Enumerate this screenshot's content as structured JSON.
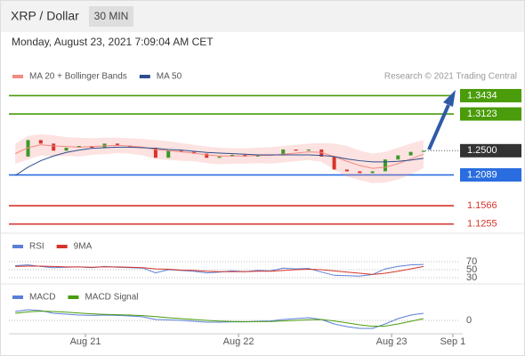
{
  "header": {
    "title": "XRP / Dollar",
    "timeframe": "30 MIN"
  },
  "timestamp": "Monday, August 23, 2021 7:09:04 AM CET",
  "chart_data": [
    {
      "type": "candlestick",
      "source": "Research © 2021 Trading Central",
      "x": [
        -11,
        -9,
        -7,
        -5,
        -3,
        -1,
        1,
        3,
        5,
        7,
        9,
        11,
        13,
        15,
        17,
        19,
        21,
        23,
        25,
        27,
        29,
        31,
        33,
        35,
        37,
        39,
        41,
        43,
        45,
        47,
        49,
        51,
        53
      ],
      "xlim": [
        -12,
        57.75
      ],
      "ylim": [
        1.11,
        1.4
      ],
      "values": [
        1.24,
        1.268,
        1.262,
        1.25,
        1.255,
        1.258,
        1.255,
        1.262,
        1.258,
        1.256,
        1.255,
        1.238,
        1.25,
        1.248,
        1.245,
        1.238,
        1.24,
        1.243,
        1.24,
        1.243,
        1.242,
        1.252,
        1.25,
        1.252,
        1.24,
        1.218,
        1.215,
        1.212,
        1.215,
        1.235,
        1.242,
        1.248,
        1.25
      ],
      "up_color": "#3a9a2a",
      "down_color": "#d6342b",
      "series": [
        {
          "name": "MA 20 + Bollinger Bands",
          "color": "#f28b82",
          "values": [
            1.245,
            1.255,
            1.26,
            1.258,
            1.257,
            1.256,
            1.257,
            1.258,
            1.259,
            1.258,
            1.256,
            1.252,
            1.25,
            1.248,
            1.246,
            1.243,
            1.241,
            1.241,
            1.241,
            1.242,
            1.242,
            1.244,
            1.246,
            1.248,
            1.247,
            1.24,
            1.232,
            1.225,
            1.22,
            1.222,
            1.228,
            1.236,
            1.244
          ],
          "upper": [
            1.262,
            1.275,
            1.278,
            1.276,
            1.273,
            1.272,
            1.271,
            1.272,
            1.272,
            1.271,
            1.27,
            1.268,
            1.266,
            1.263,
            1.26,
            1.257,
            1.255,
            1.254,
            1.254,
            1.255,
            1.256,
            1.258,
            1.26,
            1.262,
            1.263,
            1.262,
            1.258,
            1.25,
            1.245,
            1.248,
            1.255,
            1.262,
            1.268
          ],
          "lower": [
            1.228,
            1.235,
            1.242,
            1.24,
            1.241,
            1.24,
            1.243,
            1.244,
            1.246,
            1.245,
            1.242,
            1.236,
            1.234,
            1.233,
            1.232,
            1.229,
            1.227,
            1.228,
            1.228,
            1.229,
            1.228,
            1.23,
            1.232,
            1.234,
            1.231,
            1.218,
            1.206,
            1.2,
            1.195,
            1.196,
            1.201,
            1.21,
            1.22
          ]
        },
        {
          "name": "MA 50",
          "color": "#2e4d8c",
          "values": [
            1.208,
            1.222,
            1.233,
            1.241,
            1.247,
            1.251,
            1.254,
            1.255,
            1.256,
            1.256,
            1.255,
            1.254,
            1.252,
            1.251,
            1.249,
            1.247,
            1.246,
            1.245,
            1.244,
            1.243,
            1.243,
            1.243,
            1.243,
            1.243,
            1.242,
            1.24,
            1.236,
            1.233,
            1.231,
            1.231,
            1.232,
            1.234,
            1.237
          ]
        }
      ],
      "levels": [
        {
          "value": 1.3434,
          "label": "1.3434",
          "color": "#4a9c0a",
          "box": true,
          "line": "solid"
        },
        {
          "value": 1.3123,
          "label": "1.3123",
          "color": "#4a9c0a",
          "box": true,
          "line": "solid"
        },
        {
          "value": 1.25,
          "label": "1.2500",
          "color": "#333333",
          "box": true,
          "line": "dotted"
        },
        {
          "value": 1.2089,
          "label": "1.2089",
          "color": "#2a6de0",
          "box": true,
          "line": "solid"
        },
        {
          "value": 1.1566,
          "label": "1.1566",
          "color": "#d6342b",
          "box": false,
          "line": "solid"
        },
        {
          "value": 1.1255,
          "label": "1.1255",
          "color": "#d6342b",
          "box": false,
          "line": "solid"
        }
      ]
    },
    {
      "type": "line",
      "ylim": [
        20,
        80
      ],
      "yticks": [
        70,
        50,
        30
      ],
      "series": [
        {
          "name": "RSI",
          "color": "#5b7fd6",
          "values": [
            60,
            62,
            58,
            55,
            56,
            57,
            55,
            58,
            56,
            55,
            54,
            42,
            50,
            48,
            46,
            42,
            44,
            47,
            45,
            48,
            47,
            54,
            52,
            53,
            44,
            36,
            35,
            34,
            38,
            52,
            58,
            62,
            63
          ]
        },
        {
          "name": "9MA",
          "color": "#d6342b",
          "values": [
            58,
            59,
            59,
            58,
            57,
            57,
            56,
            57,
            57,
            56,
            55,
            52,
            51,
            49,
            48,
            46,
            45,
            45,
            45,
            46,
            46,
            48,
            50,
            51,
            50,
            47,
            44,
            41,
            38,
            41,
            46,
            52,
            58
          ]
        }
      ]
    },
    {
      "type": "line",
      "ylim": [
        -0.006,
        0.01
      ],
      "yticks": [
        0
      ],
      "xticks": [
        {
          "value": 0,
          "label": "Aug 21"
        },
        {
          "value": 24,
          "label": "Aug 22"
        },
        {
          "value": 48,
          "label": "Aug 23"
        },
        {
          "value": 57.6,
          "label": "Sep 1"
        }
      ],
      "series": [
        {
          "name": "MACD",
          "color": "#5b7fd6",
          "values": [
            0.005,
            0.006,
            0.0055,
            0.004,
            0.0035,
            0.003,
            0.0028,
            0.003,
            0.0028,
            0.0025,
            0.002,
            0.0005,
            0.0003,
            0.0,
            -0.0005,
            -0.001,
            -0.001,
            -0.0008,
            -0.0008,
            -0.0005,
            -0.0003,
            0.0005,
            0.001,
            0.0015,
            0.0005,
            -0.002,
            -0.0035,
            -0.0045,
            -0.0045,
            -0.002,
            0.001,
            0.003,
            0.004
          ]
        },
        {
          "name": "MACD Signal",
          "color": "#4a9c0a",
          "values": [
            0.004,
            0.0048,
            0.0052,
            0.005,
            0.0046,
            0.0041,
            0.0037,
            0.0034,
            0.0032,
            0.003,
            0.0027,
            0.0021,
            0.0015,
            0.001,
            0.0005,
            0.0,
            -0.0004,
            -0.0006,
            -0.0007,
            -0.0007,
            -0.0006,
            -0.0003,
            0.0,
            0.0004,
            0.0005,
            -0.0003,
            -0.0014,
            -0.0025,
            -0.0033,
            -0.0032,
            -0.002,
            -0.0005,
            0.001
          ]
        }
      ]
    }
  ]
}
